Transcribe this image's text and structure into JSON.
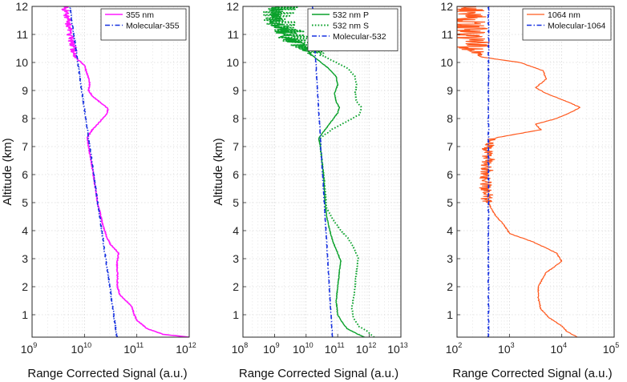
{
  "chart_data": [
    {
      "type": "line",
      "xscale": "log",
      "xlim_exp": [
        9,
        12
      ],
      "ylim": [
        0.2,
        12
      ],
      "xlabel": "Range Corrected Signal (a.u.)",
      "ylabel": "Altitude (km)",
      "x_ticks": [
        {
          "base": "10",
          "exp": "9"
        },
        {
          "base": "10",
          "exp": "10"
        },
        {
          "base": "10",
          "exp": "11"
        },
        {
          "base": "10",
          "exp": "12"
        }
      ],
      "y_ticks": [
        "1",
        "2",
        "3",
        "4",
        "5",
        "6",
        "7",
        "8",
        "9",
        "10",
        "11",
        "12"
      ],
      "y_tick_values": [
        1,
        2,
        3,
        4,
        5,
        6,
        7,
        8,
        9,
        10,
        11,
        12
      ],
      "grid": true,
      "legend_position": "top-right",
      "series": [
        {
          "name": "355 nm",
          "color": "#ff1aff",
          "style": "solid",
          "width": 1.6,
          "noisy_above": 10.0,
          "noise": 0.06,
          "points": [
            [
              0.2,
              12.0
            ],
            [
              0.3,
              11.5
            ],
            [
              0.5,
              11.2
            ],
            [
              0.8,
              11.0
            ],
            [
              1.0,
              10.95
            ],
            [
              1.3,
              10.9
            ],
            [
              1.7,
              10.68
            ],
            [
              2.0,
              10.63
            ],
            [
              2.5,
              10.63
            ],
            [
              2.8,
              10.62
            ],
            [
              3.2,
              10.65
            ],
            [
              3.5,
              10.5
            ],
            [
              3.8,
              10.42
            ],
            [
              4.2,
              10.35
            ],
            [
              5.0,
              10.25
            ],
            [
              6.0,
              10.17
            ],
            [
              7.0,
              10.08
            ],
            [
              7.3,
              10.05
            ],
            [
              7.6,
              10.15
            ],
            [
              7.9,
              10.3
            ],
            [
              8.15,
              10.42
            ],
            [
              8.35,
              10.45
            ],
            [
              8.5,
              10.35
            ],
            [
              8.8,
              10.15
            ],
            [
              9.0,
              10.08
            ],
            [
              9.3,
              10.1
            ],
            [
              9.6,
              10.05
            ],
            [
              9.9,
              10.0
            ],
            [
              10.2,
              9.82
            ],
            [
              10.6,
              9.78
            ],
            [
              11.0,
              9.72
            ],
            [
              11.5,
              9.68
            ],
            [
              12.0,
              9.62
            ]
          ]
        },
        {
          "name": "Molecular-355",
          "color": "#1530e0",
          "style": "dashdot",
          "width": 1.5,
          "points": [
            [
              0.2,
              10.62
            ],
            [
              12.0,
              9.72
            ]
          ]
        }
      ]
    },
    {
      "type": "line",
      "xscale": "log",
      "xlim_exp": [
        8,
        13
      ],
      "ylim": [
        0.2,
        12
      ],
      "xlabel": "Range Corrected Signal (a.u.)",
      "ylabel": "Altitude (km)",
      "x_ticks": [
        {
          "base": "10",
          "exp": "8"
        },
        {
          "base": "10",
          "exp": "9"
        },
        {
          "base": "10",
          "exp": "10"
        },
        {
          "base": "10",
          "exp": "11"
        },
        {
          "base": "10",
          "exp": "12"
        },
        {
          "base": "10",
          "exp": "13"
        }
      ],
      "y_ticks": [
        "1",
        "2",
        "3",
        "4",
        "5",
        "6",
        "7",
        "8",
        "9",
        "10",
        "11",
        "12"
      ],
      "y_tick_values": [
        1,
        2,
        3,
        4,
        5,
        6,
        7,
        8,
        9,
        10,
        11,
        12
      ],
      "grid": true,
      "legend_position": "top-right",
      "series": [
        {
          "name": "532 nm P",
          "color": "#0aa12b",
          "style": "solid",
          "width": 1.4,
          "noisy_above": 10.2,
          "noise": 0.25,
          "points": [
            [
              0.2,
              11.85
            ],
            [
              0.3,
              11.65
            ],
            [
              0.5,
              11.3
            ],
            [
              0.8,
              11.1
            ],
            [
              1.0,
              11.0
            ],
            [
              1.5,
              10.95
            ],
            [
              2.0,
              11.0
            ],
            [
              2.5,
              11.05
            ],
            [
              2.9,
              11.1
            ],
            [
              3.2,
              11.0
            ],
            [
              3.6,
              10.85
            ],
            [
              4.0,
              10.75
            ],
            [
              4.5,
              10.65
            ],
            [
              5.0,
              10.6
            ],
            [
              6.0,
              10.55
            ],
            [
              7.0,
              10.45
            ],
            [
              7.3,
              10.4
            ],
            [
              7.6,
              10.6
            ],
            [
              7.9,
              10.8
            ],
            [
              8.2,
              11.0
            ],
            [
              8.4,
              11.05
            ],
            [
              8.6,
              10.95
            ],
            [
              8.9,
              10.9
            ],
            [
              9.2,
              11.0
            ],
            [
              9.5,
              10.95
            ],
            [
              9.8,
              10.7
            ],
            [
              10.2,
              10.25
            ],
            [
              10.6,
              9.8
            ],
            [
              11.0,
              9.3
            ],
            [
              11.5,
              9.0
            ],
            [
              12.0,
              9.1
            ]
          ]
        },
        {
          "name": "532 nm S",
          "color": "#0aa12b",
          "style": "dotted",
          "width": 1.9,
          "noisy_above": 10.2,
          "noise": 0.55,
          "points": [
            [
              0.2,
              12.15
            ],
            [
              0.4,
              11.95
            ],
            [
              0.6,
              11.65
            ],
            [
              0.9,
              11.5
            ],
            [
              1.2,
              11.45
            ],
            [
              1.6,
              11.5
            ],
            [
              2.0,
              11.55
            ],
            [
              2.6,
              11.6
            ],
            [
              3.0,
              11.65
            ],
            [
              3.3,
              11.55
            ],
            [
              3.7,
              11.35
            ],
            [
              4.0,
              11.1
            ],
            [
              4.4,
              10.85
            ],
            [
              4.8,
              10.65
            ],
            [
              5.5,
              10.6
            ],
            [
              6.0,
              10.55
            ],
            [
              7.0,
              10.45
            ],
            [
              7.3,
              10.45
            ],
            [
              7.6,
              10.8
            ],
            [
              7.9,
              11.3
            ],
            [
              8.15,
              11.7
            ],
            [
              8.4,
              11.75
            ],
            [
              8.6,
              11.6
            ],
            [
              8.9,
              11.55
            ],
            [
              9.2,
              11.6
            ],
            [
              9.5,
              11.55
            ],
            [
              9.8,
              11.3
            ],
            [
              10.2,
              10.6
            ],
            [
              10.6,
              10.0
            ],
            [
              11.0,
              9.5
            ],
            [
              11.5,
              9.1
            ],
            [
              12.0,
              9.2
            ]
          ]
        },
        {
          "name": "Molecular-532",
          "color": "#1530e0",
          "style": "dashdot",
          "width": 1.5,
          "points": [
            [
              0.2,
              10.83
            ],
            [
              12.0,
              10.2
            ]
          ]
        }
      ]
    },
    {
      "type": "line",
      "xscale": "log",
      "xlim_exp": [
        2,
        5
      ],
      "ylim": [
        0.2,
        12
      ],
      "xlabel": "Range Corrected Signal (a.u.)",
      "ylabel": "",
      "x_ticks": [
        {
          "base": "10",
          "exp": "2"
        },
        {
          "base": "10",
          "exp": "3"
        },
        {
          "base": "10",
          "exp": "4"
        },
        {
          "base": "10",
          "exp": "5"
        }
      ],
      "y_ticks": [
        "1",
        "2",
        "3",
        "4",
        "5",
        "6",
        "7",
        "8",
        "9",
        "10",
        "11",
        "12"
      ],
      "y_tick_values": [
        1,
        2,
        3,
        4,
        5,
        6,
        7,
        8,
        9,
        10,
        11,
        12
      ],
      "grid": true,
      "legend_position": "top-right",
      "series": [
        {
          "name": "1064 nm",
          "color": "#ff5a1f",
          "style": "solid",
          "width": 1.2,
          "noisy_above": 10.2,
          "noise": 0.35,
          "noisy_band": [
            5.0,
            7.3,
            0.12
          ],
          "points": [
            [
              0.2,
              4.3
            ],
            [
              0.4,
              4.1
            ],
            [
              0.6,
              4.0
            ],
            [
              0.9,
              3.75
            ],
            [
              1.2,
              3.6
            ],
            [
              1.6,
              3.55
            ],
            [
              2.0,
              3.55
            ],
            [
              2.5,
              3.7
            ],
            [
              2.9,
              4.0
            ],
            [
              3.2,
              3.9
            ],
            [
              3.6,
              3.45
            ],
            [
              3.9,
              3.0
            ],
            [
              4.2,
              2.9
            ],
            [
              4.5,
              2.75
            ],
            [
              4.8,
              2.65
            ],
            [
              5.0,
              2.6
            ],
            [
              5.5,
              2.55
            ],
            [
              6.0,
              2.55
            ],
            [
              6.5,
              2.6
            ],
            [
              7.0,
              2.58
            ],
            [
              7.3,
              2.7
            ],
            [
              7.5,
              3.3
            ],
            [
              7.6,
              3.6
            ],
            [
              7.8,
              3.5
            ],
            [
              8.0,
              3.9
            ],
            [
              8.2,
              4.15
            ],
            [
              8.4,
              4.35
            ],
            [
              8.6,
              4.1
            ],
            [
              8.9,
              3.7
            ],
            [
              9.1,
              3.5
            ],
            [
              9.4,
              3.7
            ],
            [
              9.7,
              3.65
            ],
            [
              10.0,
              3.2
            ],
            [
              10.2,
              2.45
            ],
            [
              10.5,
              2.3
            ],
            [
              11.0,
              2.25
            ],
            [
              11.5,
              2.2
            ],
            [
              12.0,
              2.2
            ]
          ]
        },
        {
          "name": "Molecular-1064",
          "color": "#1530e0",
          "style": "dashdot",
          "width": 1.5,
          "points": [
            [
              0.2,
              2.6
            ],
            [
              12.0,
              2.6
            ]
          ]
        }
      ]
    }
  ]
}
